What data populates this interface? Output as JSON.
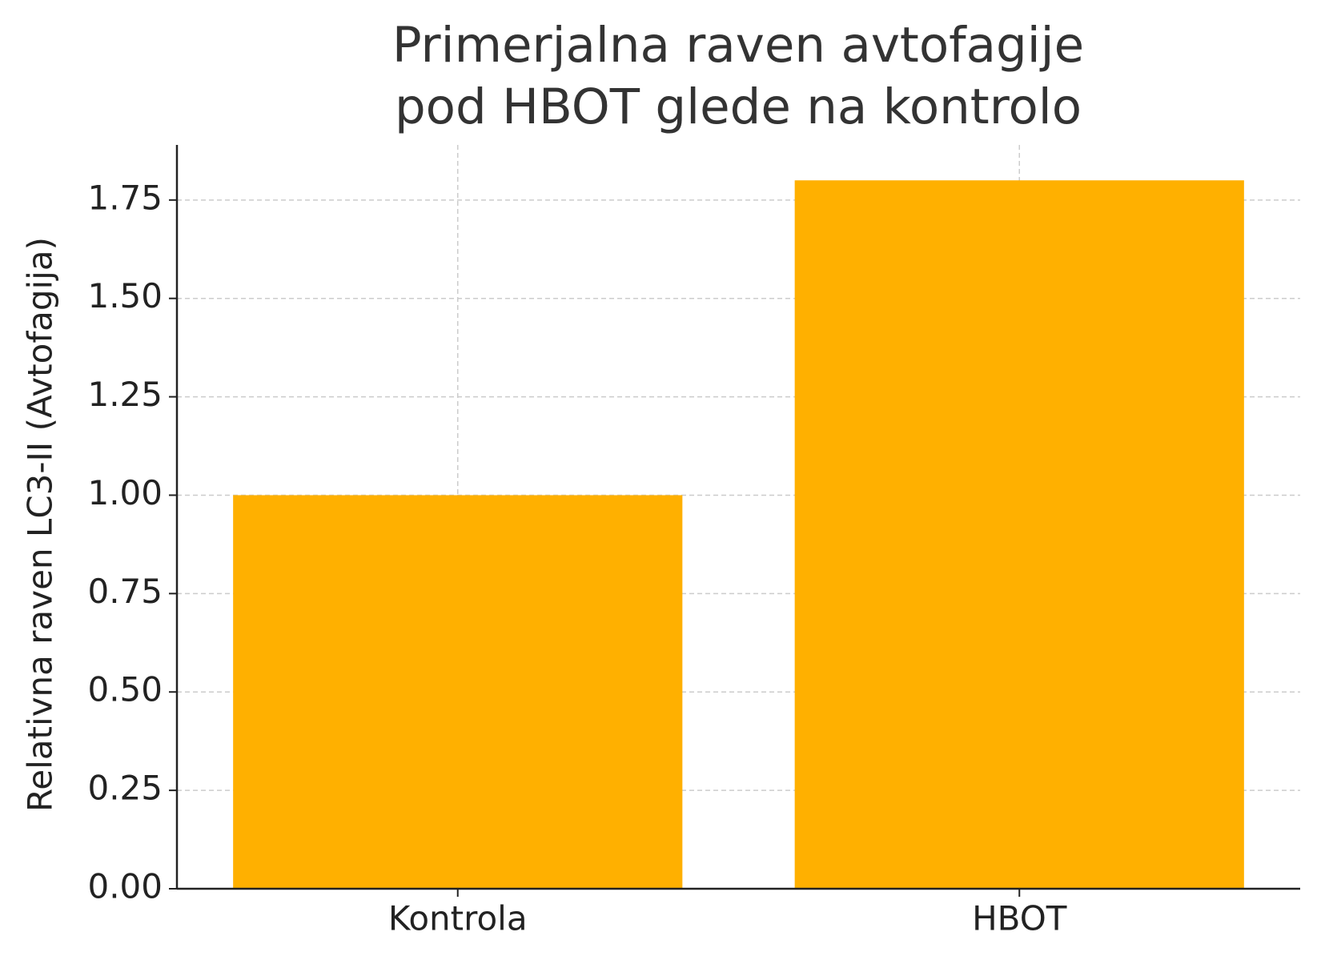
{
  "chart_data": {
    "type": "bar",
    "title": "Primerjalna raven avtofagije\npod HBOT glede na kontrolo",
    "y_label": "Relativna raven LC3-II (Avtofagija)",
    "categories": [
      "Kontrola",
      "HBOT"
    ],
    "values": [
      1.0,
      1.8
    ],
    "color": "#ffb000",
    "ylim": [
      0,
      1.89
    ],
    "yticks": [
      {
        "value": 0,
        "label": "0.00"
      },
      {
        "value": 0.25,
        "label": "0.25"
      },
      {
        "value": 0.5,
        "label": "0.50"
      },
      {
        "value": 0.75,
        "label": "0.75"
      },
      {
        "value": 1,
        "label": "1.00"
      },
      {
        "value": 1.25,
        "label": "1.25"
      },
      {
        "value": 1.5,
        "label": "1.50"
      },
      {
        "value": 1.75,
        "label": "1.75"
      }
    ],
    "grid": true
  }
}
